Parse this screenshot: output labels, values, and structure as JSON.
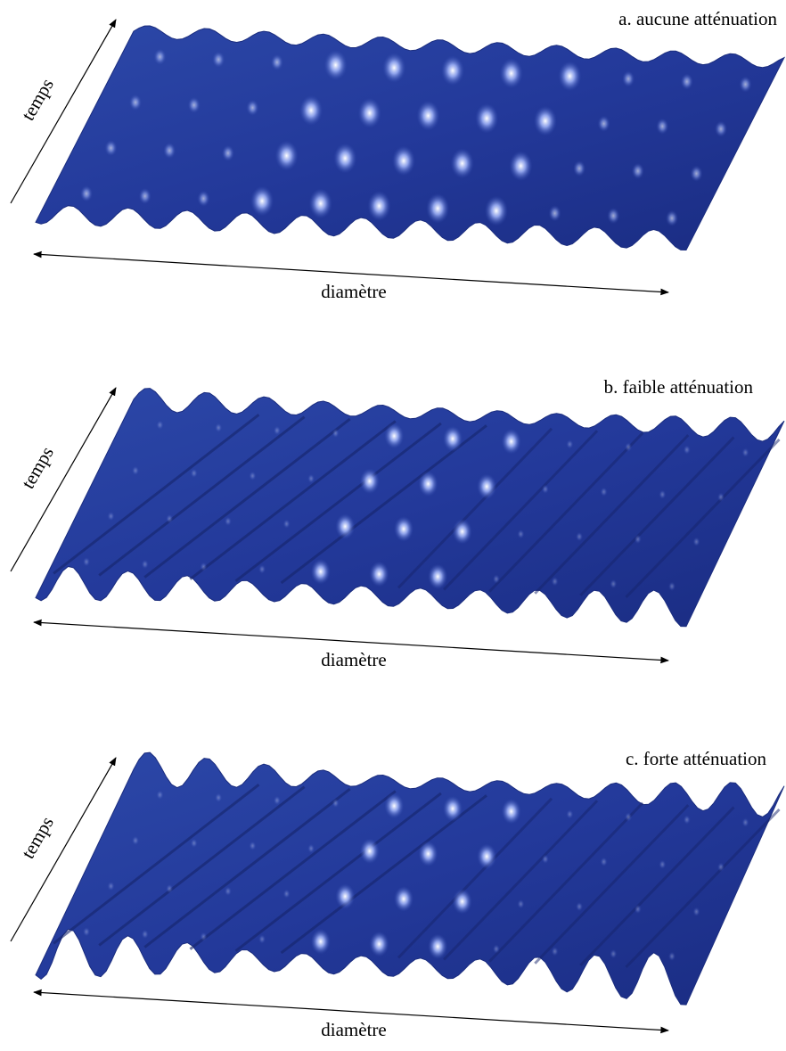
{
  "panels": [
    {
      "label": "a. aucune atténuation",
      "y_axis": "temps",
      "x_axis": "diamètre"
    },
    {
      "label": "b. faible atténuation",
      "y_axis": "temps",
      "x_axis": "diamètre"
    },
    {
      "label": "c. forte atténuation",
      "y_axis": "temps",
      "x_axis": "diamètre"
    }
  ]
}
